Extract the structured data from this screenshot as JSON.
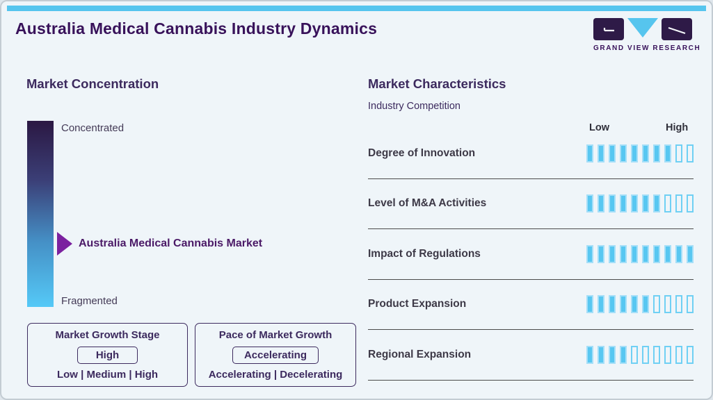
{
  "page": {
    "title": "Australia Medical Cannabis Industry Dynamics"
  },
  "logo": {
    "wordmark": "GRAND VIEW RESEARCH"
  },
  "market_concentration": {
    "heading": "Market Concentration",
    "scale_top_label": "Concentrated",
    "scale_bottom_label": "Fragmented",
    "marker_label": "Australia Medical Cannabis Market",
    "growth_stage_box": {
      "title": "Market Growth Stage",
      "value": "High",
      "options": "Low | Medium | High"
    },
    "pace_box": {
      "title": "Pace of Market Growth",
      "value": "Accelerating",
      "options": "Accelerating | Decelerating"
    }
  },
  "market_characteristics": {
    "heading": "Market Characteristics",
    "subheading": "Industry Competition",
    "scale_low_label": "Low",
    "scale_high_label": "High",
    "rows": [
      {
        "label": "Degree of Innovation",
        "filled": 8,
        "total": 10
      },
      {
        "label": "Level of M&A Activities",
        "filled": 7,
        "total": 10
      },
      {
        "label": "Impact of Regulations",
        "filled": 10,
        "total": 10
      },
      {
        "label": "Product Expansion",
        "filled": 6,
        "total": 10
      },
      {
        "label": "Regional Expansion",
        "filled": 4,
        "total": 10
      }
    ]
  },
  "chart_data": {
    "type": "bar",
    "title": "Market Characteristics — Industry Competition",
    "categories": [
      "Degree of Innovation",
      "Level of M&A Activities",
      "Impact of Regulations",
      "Product Expansion",
      "Regional Expansion"
    ],
    "values": [
      8,
      7,
      10,
      6,
      4
    ],
    "scale": {
      "min_label": "Low",
      "max_label": "High",
      "max": 10
    },
    "concentration_gauge": {
      "top": "Concentrated",
      "bottom": "Fragmented",
      "marker": "Australia Medical Cannabis Market",
      "marker_position": "middle"
    }
  },
  "colors": {
    "accent_blue": "#56c5ee",
    "tick_blue": "#58c7f1",
    "deep_purple": "#38125a",
    "arrow_purple": "#7b219f",
    "background": "#eff5f9",
    "gradient_top": "#2b1843",
    "gradient_bottom": "#55c9f7"
  }
}
